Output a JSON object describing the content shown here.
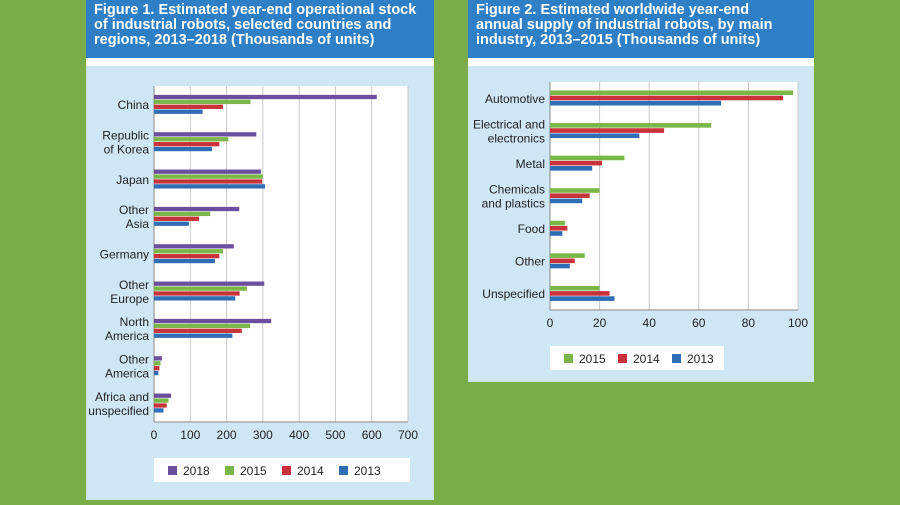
{
  "figures": [
    {
      "title_lines": [
        "Figure 1. Estimated year-end operational stock",
        "of industrial robots, selected countries and",
        "regions, 2013–2018 (Thousands of units)"
      ]
    },
    {
      "title_lines": [
        "Figure 2. Estimated worldwide year-end",
        "annual supply of industrial robots, by main",
        "industry, 2013–2015 (Thousands of units)"
      ]
    }
  ],
  "chart_data": [
    {
      "type": "bar",
      "orientation": "horizontal",
      "categories": [
        [
          "China"
        ],
        [
          "Republic",
          "of Korea"
        ],
        [
          "Japan"
        ],
        [
          "Other",
          "Asia"
        ],
        [
          "Germany"
        ],
        [
          "Other",
          "Europe"
        ],
        [
          "North",
          "America"
        ],
        [
          "Other",
          "America"
        ],
        [
          "Africa and",
          "unspecified"
        ]
      ],
      "series": [
        {
          "name": "2018",
          "color": "#6b4f9e",
          "values": [
            614,
            282,
            295,
            235,
            220,
            304,
            323,
            22,
            47
          ]
        },
        {
          "name": "2015",
          "color": "#7ab648",
          "values": [
            266,
            205,
            300,
            155,
            190,
            256,
            265,
            18,
            40
          ]
        },
        {
          "name": "2014",
          "color": "#c8323a",
          "values": [
            190,
            180,
            298,
            124,
            180,
            236,
            242,
            15,
            35
          ]
        },
        {
          "name": "2013",
          "color": "#2f6db5",
          "values": [
            134,
            160,
            306,
            96,
            168,
            224,
            216,
            12,
            26
          ]
        }
      ],
      "xticks": [
        0,
        100,
        200,
        300,
        400,
        500,
        600,
        700
      ],
      "xlim": [
        0,
        700
      ],
      "grid": true,
      "legend_position": "bottom"
    },
    {
      "type": "bar",
      "orientation": "horizontal",
      "categories": [
        [
          "Automotive"
        ],
        [
          "Electrical and",
          "electronics"
        ],
        [
          "Metal"
        ],
        [
          "Chemicals",
          "and plastics"
        ],
        [
          "Food"
        ],
        [
          "Other"
        ],
        [
          "Unspecified"
        ]
      ],
      "series": [
        {
          "name": "2015",
          "color": "#7ab648",
          "values": [
            98,
            65,
            30,
            20,
            6,
            14,
            20
          ]
        },
        {
          "name": "2014",
          "color": "#c8323a",
          "values": [
            94,
            46,
            21,
            16,
            7,
            10,
            24
          ]
        },
        {
          "name": "2013",
          "color": "#2f6db5",
          "values": [
            69,
            36,
            17,
            13,
            5,
            8,
            26
          ]
        }
      ],
      "xticks": [
        0,
        20,
        40,
        60,
        80,
        100
      ],
      "xlim": [
        0,
        100
      ],
      "grid": true,
      "legend_position": "bottom"
    }
  ]
}
